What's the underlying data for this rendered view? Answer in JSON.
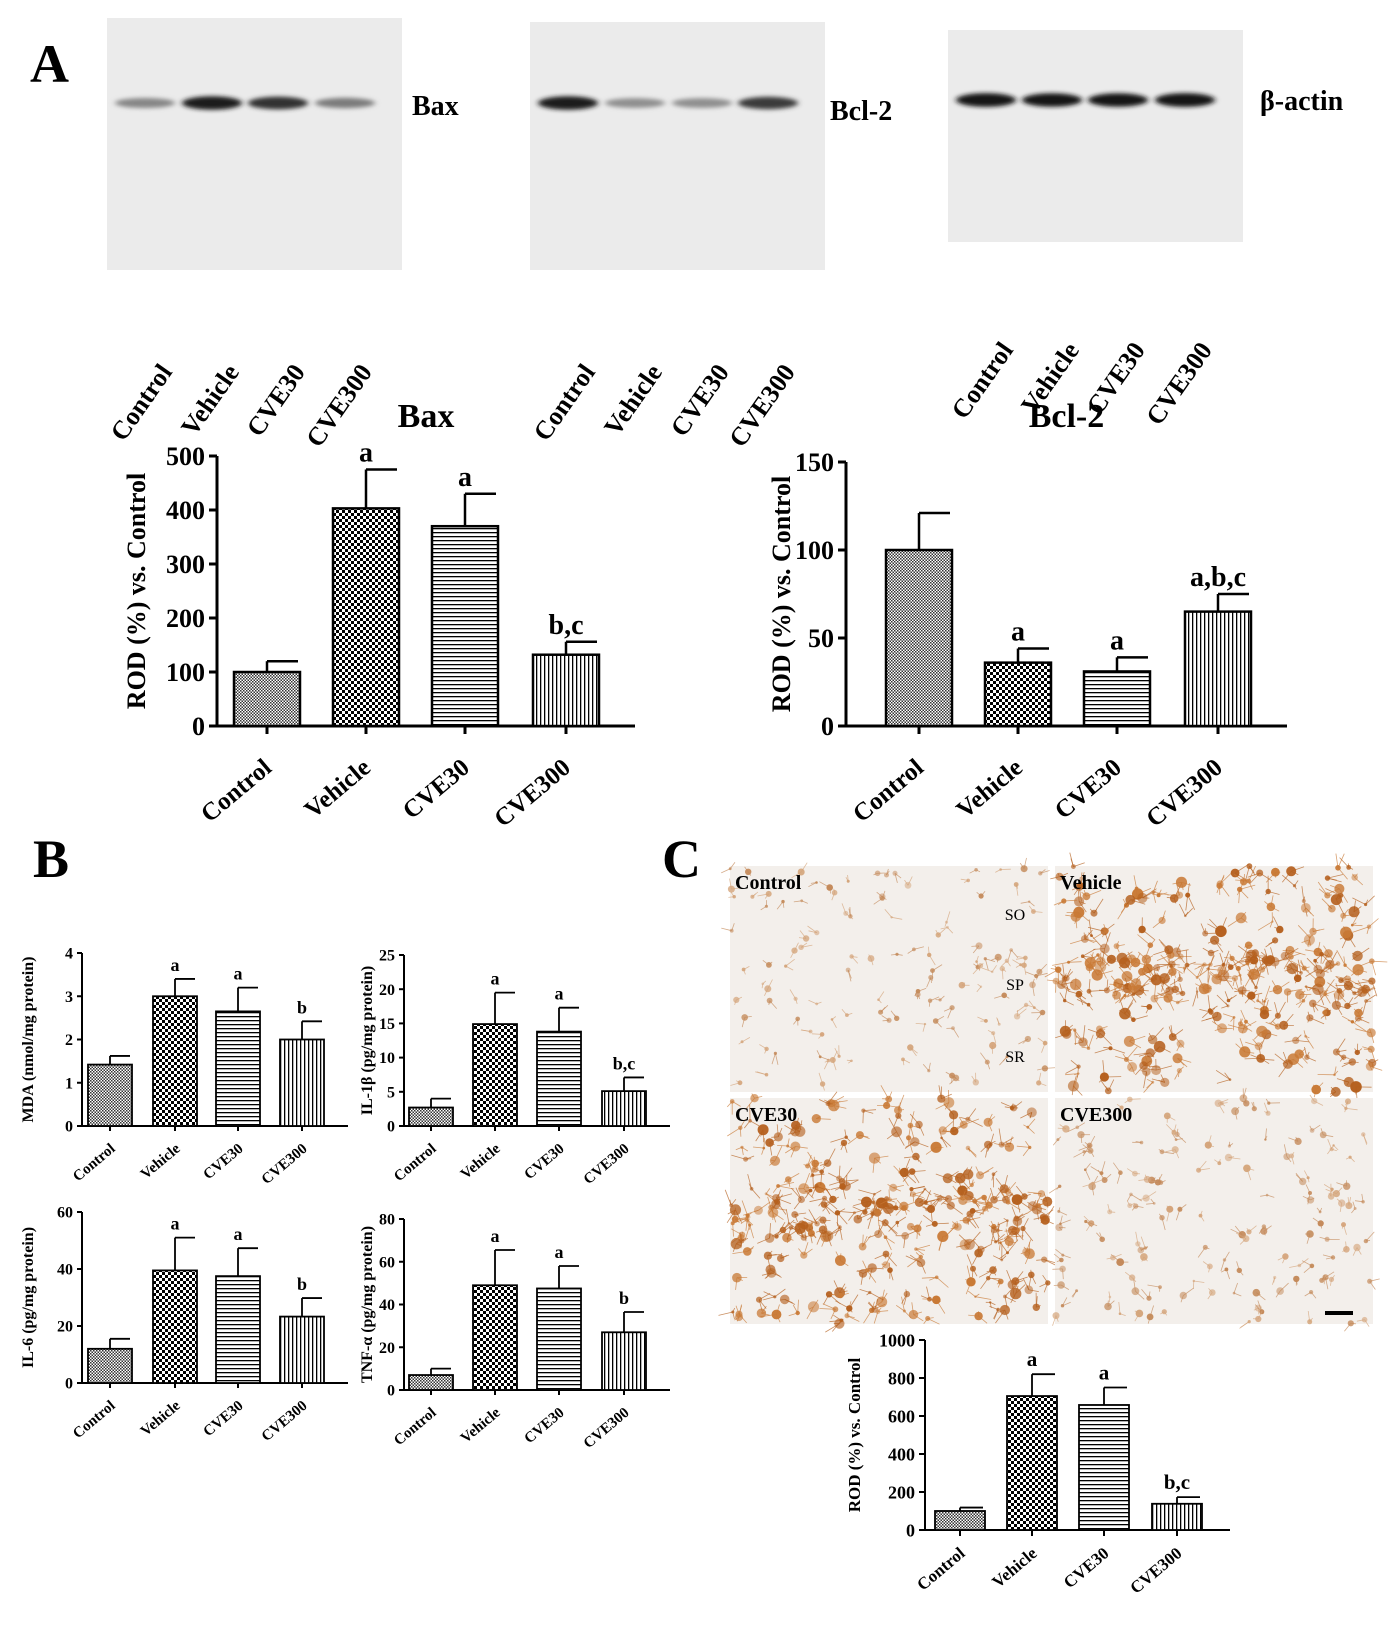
{
  "panel_labels": {
    "a": "A",
    "b": "B",
    "c": "C"
  },
  "blots": [
    {
      "label": "Bax",
      "lanes": [
        "Control",
        "Vehicle",
        "CVE30",
        "CVE300"
      ],
      "band_intensity": [
        0.35,
        0.9,
        0.8,
        0.4
      ]
    },
    {
      "label": "Bcl-2",
      "lanes": [
        "Control",
        "Vehicle",
        "CVE30",
        "CVE300"
      ],
      "band_intensity": [
        0.9,
        0.3,
        0.3,
        0.75
      ]
    },
    {
      "label": "β-actin",
      "lanes": [
        "Control",
        "Vehicle",
        "CVE30",
        "CVE300"
      ],
      "band_intensity": [
        0.95,
        0.92,
        0.92,
        0.95
      ]
    }
  ],
  "micrographs": {
    "panels": [
      {
        "label": "Control",
        "density": 0.25
      },
      {
        "label": "Vehicle",
        "density": 0.9
      },
      {
        "label": "CVE30",
        "density": 0.85
      },
      {
        "label": "CVE300",
        "density": 0.35
      }
    ],
    "layers": [
      "SO",
      "SP",
      "SR"
    ]
  },
  "chart_data": [
    {
      "type": "bar",
      "title": "Bax",
      "ylabel": "ROD (%) vs. Control",
      "categories": [
        "Control",
        "Vehicle",
        "CVE30",
        "CVE300"
      ],
      "values": [
        100,
        403,
        370,
        132
      ],
      "errors": [
        20,
        72,
        60,
        24
      ],
      "labels": [
        "",
        "a",
        "a",
        "b,c"
      ],
      "ylim": [
        0,
        500
      ],
      "yticks": [
        "0",
        "100",
        "200",
        "300",
        "400",
        "500"
      ]
    },
    {
      "type": "bar",
      "title": "Bcl-2",
      "ylabel": "ROD (%) vs. Control",
      "categories": [
        "Control",
        "Vehicle",
        "CVE30",
        "CVE300"
      ],
      "values": [
        100,
        36,
        31,
        65
      ],
      "errors": [
        21,
        8,
        8,
        10
      ],
      "labels": [
        "",
        "a",
        "a",
        "a,b,c"
      ],
      "ylim": [
        0,
        150
      ],
      "yticks": [
        "0",
        "50",
        "100",
        "150"
      ]
    },
    {
      "type": "bar",
      "title": "",
      "ylabel": "MDA (nmol/mg protein)",
      "categories": [
        "Control",
        "Vehicle",
        "CVE30",
        "CVE300"
      ],
      "values": [
        1.42,
        3.0,
        2.65,
        2.0
      ],
      "errors": [
        0.2,
        0.4,
        0.55,
        0.42
      ],
      "labels": [
        "",
        "a",
        "a",
        "b"
      ],
      "ylim": [
        0,
        4
      ],
      "yticks": [
        "0",
        "1",
        "2",
        "3",
        "4"
      ]
    },
    {
      "type": "bar",
      "title": "",
      "ylabel": "IL-1β (pg/mg protein)",
      "categories": [
        "Control",
        "Vehicle",
        "CVE30",
        "CVE300"
      ],
      "values": [
        2.7,
        14.9,
        13.8,
        5.1
      ],
      "errors": [
        1.3,
        4.6,
        3.5,
        2.0
      ],
      "labels": [
        "",
        "a",
        "a",
        "b,c"
      ],
      "ylim": [
        0,
        25
      ],
      "yticks": [
        "0",
        "5",
        "10",
        "15",
        "20",
        "25"
      ]
    },
    {
      "type": "bar",
      "title": "",
      "ylabel": "IL-6 (pg/mg protein)",
      "categories": [
        "Control",
        "Vehicle",
        "CVE30",
        "CVE300"
      ],
      "values": [
        12,
        39.5,
        37.5,
        23.3
      ],
      "errors": [
        3.5,
        11.5,
        9.8,
        6.5
      ],
      "labels": [
        "",
        "a",
        "a",
        "b"
      ],
      "ylim": [
        0,
        60
      ],
      "yticks": [
        "0",
        "20",
        "40",
        "60"
      ]
    },
    {
      "type": "bar",
      "title": "",
      "ylabel": "TNF-α (pg/mg protein)",
      "categories": [
        "Control",
        "Vehicle",
        "CVE30",
        "CVE300"
      ],
      "values": [
        7,
        49,
        47.5,
        27
      ],
      "errors": [
        3,
        16.5,
        10.5,
        9.5
      ],
      "labels": [
        "",
        "a",
        "a",
        "b"
      ],
      "ylim": [
        0,
        80
      ],
      "yticks": [
        "0",
        "20",
        "40",
        "60",
        "80"
      ]
    },
    {
      "type": "bar",
      "title": "",
      "ylabel": "ROD (%) vs. Control",
      "categories": [
        "Control",
        "Vehicle",
        "CVE30",
        "CVE300"
      ],
      "values": [
        100,
        705,
        658,
        138
      ],
      "errors": [
        18,
        115,
        92,
        35
      ],
      "labels": [
        "",
        "a",
        "a",
        "b,c"
      ],
      "ylim": [
        0,
        1000
      ],
      "yticks": [
        "0",
        "200",
        "400",
        "600",
        "800",
        "1000"
      ]
    }
  ]
}
